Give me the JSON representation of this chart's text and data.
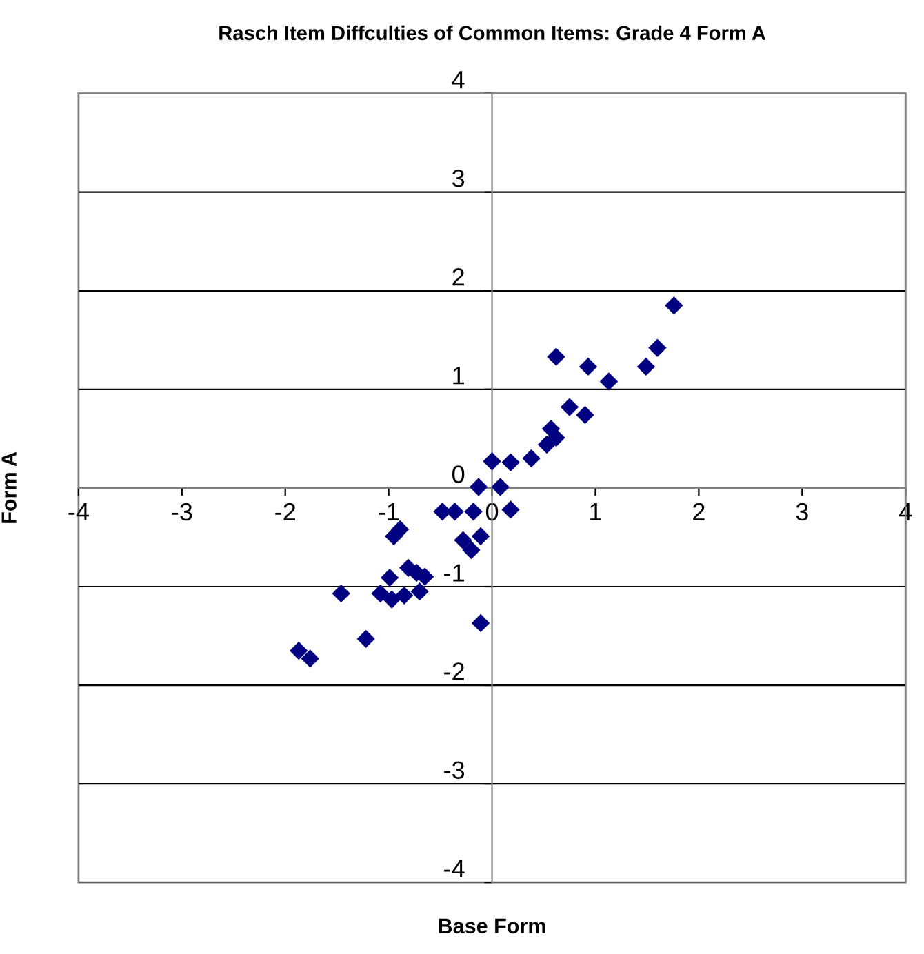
{
  "chart_data": {
    "type": "scatter",
    "title": "Rasch Item Diffculties of Common Items: Grade 4 Form A",
    "xlabel": "Base Form",
    "ylabel": "Form A",
    "x": [
      1.76,
      1.6,
      1.49,
      1.13,
      0.93,
      0.62,
      0.75,
      0.9,
      0.57,
      0.62,
      0.53,
      0.38,
      0.18,
      0.0,
      -0.13,
      0.08,
      0.18,
      -0.18,
      -0.36,
      -0.48,
      -0.89,
      -0.95,
      -0.28,
      -0.2,
      -0.11,
      -0.81,
      -0.73,
      -0.65,
      -0.99,
      -1.46,
      -1.08,
      -0.97,
      -0.85,
      -0.7,
      -0.11,
      -1.22,
      -1.87,
      -1.76
    ],
    "series": [
      {
        "color": "#000080",
        "values": [
          1.85,
          1.42,
          1.23,
          1.08,
          1.23,
          1.33,
          0.82,
          0.74,
          0.6,
          0.51,
          0.44,
          0.3,
          0.26,
          0.27,
          0.01,
          0.01,
          -0.22,
          -0.24,
          -0.24,
          -0.24,
          -0.42,
          -0.49,
          -0.53,
          -0.63,
          -0.49,
          -0.81,
          -0.86,
          -0.9,
          -0.91,
          -1.07,
          -1.07,
          -1.13,
          -1.09,
          -1.05,
          -1.37,
          -1.53,
          -1.65,
          -1.73
        ]
      }
    ],
    "xlim": [
      -4,
      4
    ],
    "ylim": [
      -4,
      4
    ],
    "xticks": [
      -4,
      -3,
      -2,
      -1,
      0,
      1,
      2,
      3,
      4
    ],
    "yticks": [
      -4,
      -3,
      -2,
      -1,
      0,
      1,
      2,
      3,
      4
    ],
    "grid": "y",
    "marker": "diamond",
    "legend": false
  }
}
